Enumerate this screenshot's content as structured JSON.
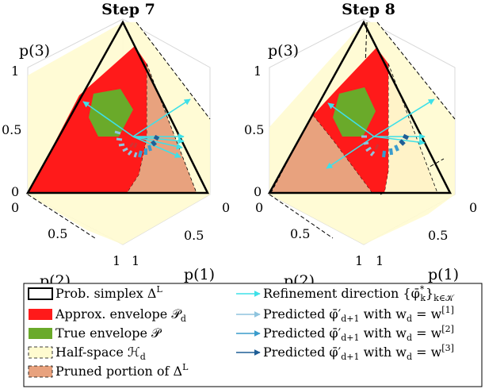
{
  "panels": [
    {
      "title": "Step 7",
      "axis_labels": {
        "p3": "p(3)",
        "p2": "p(2)",
        "p1": "p(1)"
      },
      "ticks": {
        "p3": [
          "0",
          "0.5",
          "1"
        ],
        "p2": [
          "0",
          "0.5",
          "1"
        ],
        "p1": [
          "1",
          "0.5",
          "0"
        ]
      }
    },
    {
      "title": "Step 8",
      "axis_labels": {
        "p3": "p(3)",
        "p2": "p(2)",
        "p1": "p(1)"
      },
      "ticks": {
        "p3": [
          "0",
          "0.5",
          "1"
        ],
        "p2": [
          "0",
          "0.5",
          "1"
        ],
        "p1": [
          "1",
          "0.5",
          "0"
        ]
      }
    }
  ],
  "legend": {
    "left": [
      {
        "text": "Prob. simplex Δ",
        "sup": "L",
        "swatch": "simplex"
      },
      {
        "text": "Approx. envelope 𝒫",
        "sub": "d",
        "swatch": "approx"
      },
      {
        "text": "True envelope 𝒫",
        "swatch": "true"
      },
      {
        "text": "Half-space ℋ",
        "sub": "d",
        "swatch": "halfspace"
      },
      {
        "text": "Pruned portion of Δ",
        "sup": "L",
        "swatch": "pruned"
      }
    ],
    "right": [
      {
        "text": "Refinement direction {φ̄",
        "sup": "*",
        "sub": "k",
        "tail": "}",
        "tail_sub": "k∈𝒦",
        "swatch": "refine"
      },
      {
        "text": "Predicted φ̄′",
        "sub": "d+1",
        "tail": " with w",
        "tail_sub": "d",
        "tail2": " = w",
        "tail2_sup": "[1]",
        "swatch": "pred1"
      },
      {
        "text": "Predicted φ̄′",
        "sub": "d+1",
        "tail": " with w",
        "tail_sub": "d",
        "tail2": " = w",
        "tail2_sup": "[2]",
        "swatch": "pred2"
      },
      {
        "text": "Predicted φ̄′",
        "sub": "d+1",
        "tail": " with w",
        "tail_sub": "d",
        "tail2": " = w",
        "tail2_sup": "[3]",
        "swatch": "pred3"
      }
    ]
  },
  "colors": {
    "approx": "#ff1a1a",
    "true_env": "#6aaa2a",
    "halfspace": "#fffbd0",
    "pruned": "#e8a27e",
    "refine": "#3ee0e8",
    "pred1": "#8fc4de",
    "pred2": "#3a9ccc",
    "pred3": "#1f5e96"
  }
}
